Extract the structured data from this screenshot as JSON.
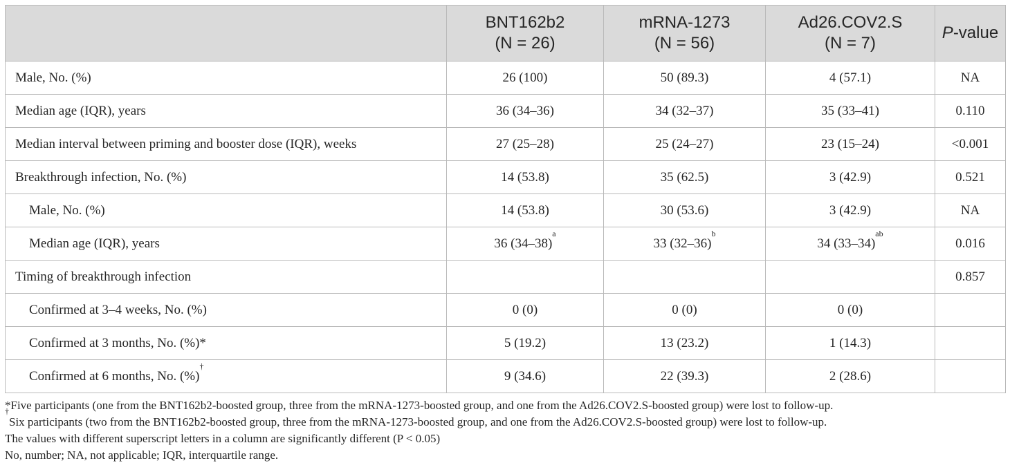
{
  "header": {
    "blank": "",
    "col1": {
      "line1": "BNT162b2",
      "line2": "(N = 26)"
    },
    "col2": {
      "line1": "mRNA-1273",
      "line2": "(N = 56)"
    },
    "col3": {
      "line1": "Ad26.COV2.S",
      "line2": "(N = 7)"
    },
    "col4": {
      "p_italic": "P",
      "rest": "-value"
    }
  },
  "rows": [
    {
      "label": "Male, No. (%)",
      "v1": "26 (100)",
      "v2": "50 (89.3)",
      "v3": "4 (57.1)",
      "p": "NA"
    },
    {
      "label": "Median age (IQR), years",
      "v1": "36 (34–36)",
      "v2": "34 (32–37)",
      "v3": "35 (33–41)",
      "p": "0.110"
    },
    {
      "label": "Median interval between priming and booster dose (IQR), weeks",
      "v1": "27 (25–28)",
      "v2": "25 (24–27)",
      "v3": "23 (15–24)",
      "p": "<0.001"
    },
    {
      "label": "Breakthrough infection, No. (%)",
      "v1": "14 (53.8)",
      "v2": "35 (62.5)",
      "v3": "3 (42.9)",
      "p": "0.521"
    },
    {
      "label": "Male, No. (%)",
      "v1": "14 (53.8)",
      "v2": "30 (53.6)",
      "v3": "3 (42.9)",
      "p": "NA"
    },
    {
      "label": "Median age (IQR), years",
      "v1": "36 (34–38)",
      "v1_sup": "a",
      "v2": "33 (32–36)",
      "v2_sup": "b",
      "v3": "34 (33–34)",
      "v3_sup": "ab",
      "p": "0.016"
    },
    {
      "label": "Timing of breakthrough infection",
      "v1": "",
      "v2": "",
      "v3": "",
      "p": "0.857"
    },
    {
      "label": "Confirmed at 3–4 weeks, No. (%)",
      "v1": "0 (0)",
      "v2": "0 (0)",
      "v3": "0 (0)",
      "p": ""
    },
    {
      "label": "Confirmed at 3 months, No. (%)*",
      "v1": "5 (19.2)",
      "v2": "13 (23.2)",
      "v3": "1 (14.3)",
      "p": ""
    },
    {
      "label": "Confirmed at 6 months, No. (%)",
      "label_sup": "†",
      "v1": "9 (34.6)",
      "v2": "22 (39.3)",
      "v3": "2 (28.6)",
      "p": ""
    }
  ],
  "notes": {
    "n1": "*Five participants (one from the BNT162b2-boosted group, three from the mRNA-1273-boosted group, and one from the Ad26.COV2.S-boosted group) were lost to follow-up.",
    "n2_sup": "†",
    "n2": "Six participants (two from the BNT162b2-boosted group, three from the mRNA-1273-boosted group, and one from the Ad26.COV2.S-boosted group) were lost to follow-up.",
    "n3": "The values with different superscript letters in a column are significantly different (P < 0.05)",
    "n4": "No, number; NA, not applicable; IQR, interquartile range."
  }
}
